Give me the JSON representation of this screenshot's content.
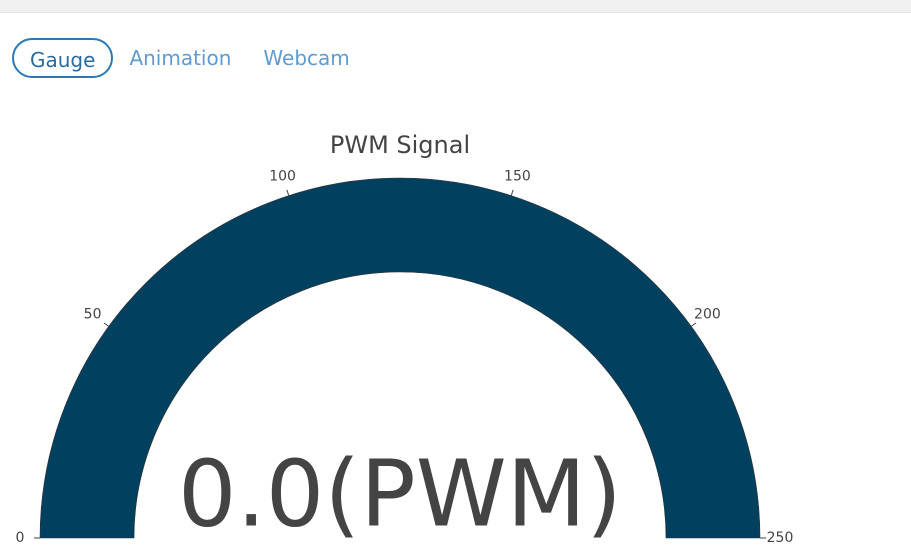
{
  "tabs": [
    "Gauge",
    "Animation",
    "Webcam"
  ],
  "chart_data": {
    "type": "gauge",
    "title": "PWM Signal",
    "values": [
      0
    ],
    "value_labels": [
      "0.0(PWM)"
    ],
    "ylim": [
      0,
      250
    ],
    "yticks": [
      0,
      50,
      100,
      150,
      200,
      250
    ],
    "color": "#02405f"
  }
}
